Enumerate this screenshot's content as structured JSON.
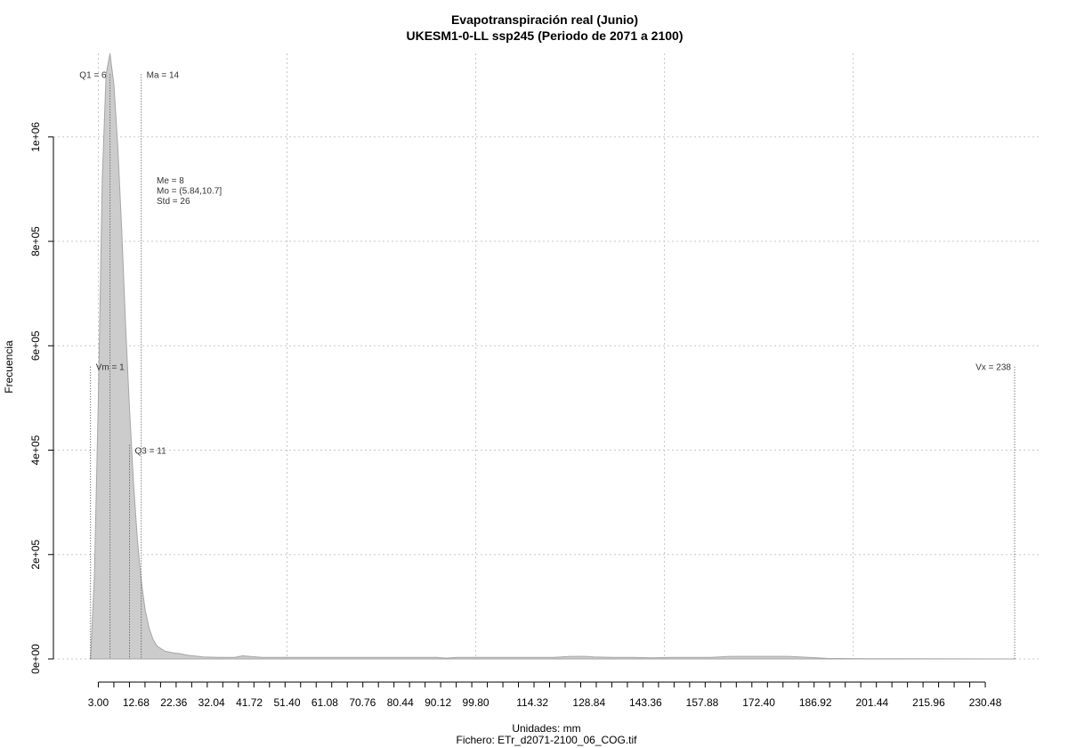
{
  "chart_data": {
    "type": "area",
    "title": "Evapotranspiración real (Junio)",
    "subtitle": "UKESM1-0-LL ssp245 (Periodo de 2071 a 2100)",
    "xlabel": "Unidades: mm",
    "ylabel": "Frecuencia",
    "caption": "Fichero: ETr_d2071-2100_06_COG.tif",
    "xlim": [
      -3.5,
      238
    ],
    "ylim": [
      0,
      1160000
    ],
    "grid": true,
    "x_ticks": [
      3.0,
      12.68,
      22.36,
      32.04,
      41.72,
      51.4,
      61.08,
      70.76,
      80.44,
      90.12,
      99.8,
      114.32,
      128.84,
      143.36,
      157.88,
      172.4,
      186.92,
      201.44,
      215.96,
      230.48
    ],
    "x_tick_labels": [
      "3.00",
      "12.68",
      "22.36",
      "32.04",
      "41.72",
      "51.40",
      "61.08",
      "70.76",
      "80.44",
      "90.12",
      "99.80",
      "114.32",
      "128.84",
      "143.36",
      "157.88",
      "172.40",
      "186.92",
      "201.44",
      "215.96",
      "230.48"
    ],
    "x_grid": [
      3.0,
      51.4,
      99.8,
      148.2,
      196.6
    ],
    "y_ticks": [
      0,
      200000,
      400000,
      600000,
      800000,
      1000000
    ],
    "y_tick_labels": [
      "0e+00",
      "2e+05",
      "4e+05",
      "6e+05",
      "8e+05",
      "1e+06"
    ],
    "series": [
      {
        "x": [
          1,
          2,
          3,
          4,
          5,
          6,
          7,
          8,
          9,
          10,
          11,
          12,
          13,
          14,
          15,
          16,
          17,
          18,
          20,
          22,
          24,
          26,
          30,
          34,
          38,
          40,
          45,
          60,
          80,
          90,
          92,
          95,
          110,
          120,
          124,
          128,
          130,
          135,
          140,
          145,
          150,
          155,
          160,
          165,
          170,
          180,
          183,
          190,
          200,
          238
        ],
        "y": [
          0,
          160000,
          500000,
          920000,
          1120000,
          1160000,
          1100000,
          980000,
          820000,
          640000,
          480000,
          340000,
          230000,
          150000,
          95000,
          60000,
          38000,
          25000,
          15000,
          12000,
          10000,
          7000,
          4000,
          3000,
          3000,
          6000,
          3000,
          3000,
          3000,
          3000,
          1500,
          3000,
          3000,
          3000,
          5000,
          5000,
          4000,
          3000,
          3000,
          2000,
          3000,
          3000,
          3000,
          5000,
          5000,
          5000,
          4000,
          1000,
          500,
          0
        ]
      }
    ],
    "annotations": [
      {
        "label": "Q1 = 6",
        "x": 6,
        "y_top": 1120000,
        "side": "left",
        "y_label": 1120000
      },
      {
        "label": "Ma = 14",
        "x": 14,
        "y_top": 1120000,
        "side": "right",
        "y_label": 1120000
      },
      {
        "label": "Vm = 1",
        "x": 1,
        "y_top": 560000,
        "side": "right",
        "y_label": 560000
      },
      {
        "label": "Q3 = 11",
        "x": 11,
        "y_top": 410000,
        "side": "right",
        "y_label": 400000
      },
      {
        "label": "Vx = 238",
        "x": 238,
        "y_top": 560000,
        "side": "left",
        "y_label": 560000
      }
    ],
    "stats": [
      "Me = 8",
      "Mo = (5.84,10.7]",
      "Std = 26"
    ],
    "fill_color": "#cccccc",
    "line_color": "#a6a6a6"
  }
}
